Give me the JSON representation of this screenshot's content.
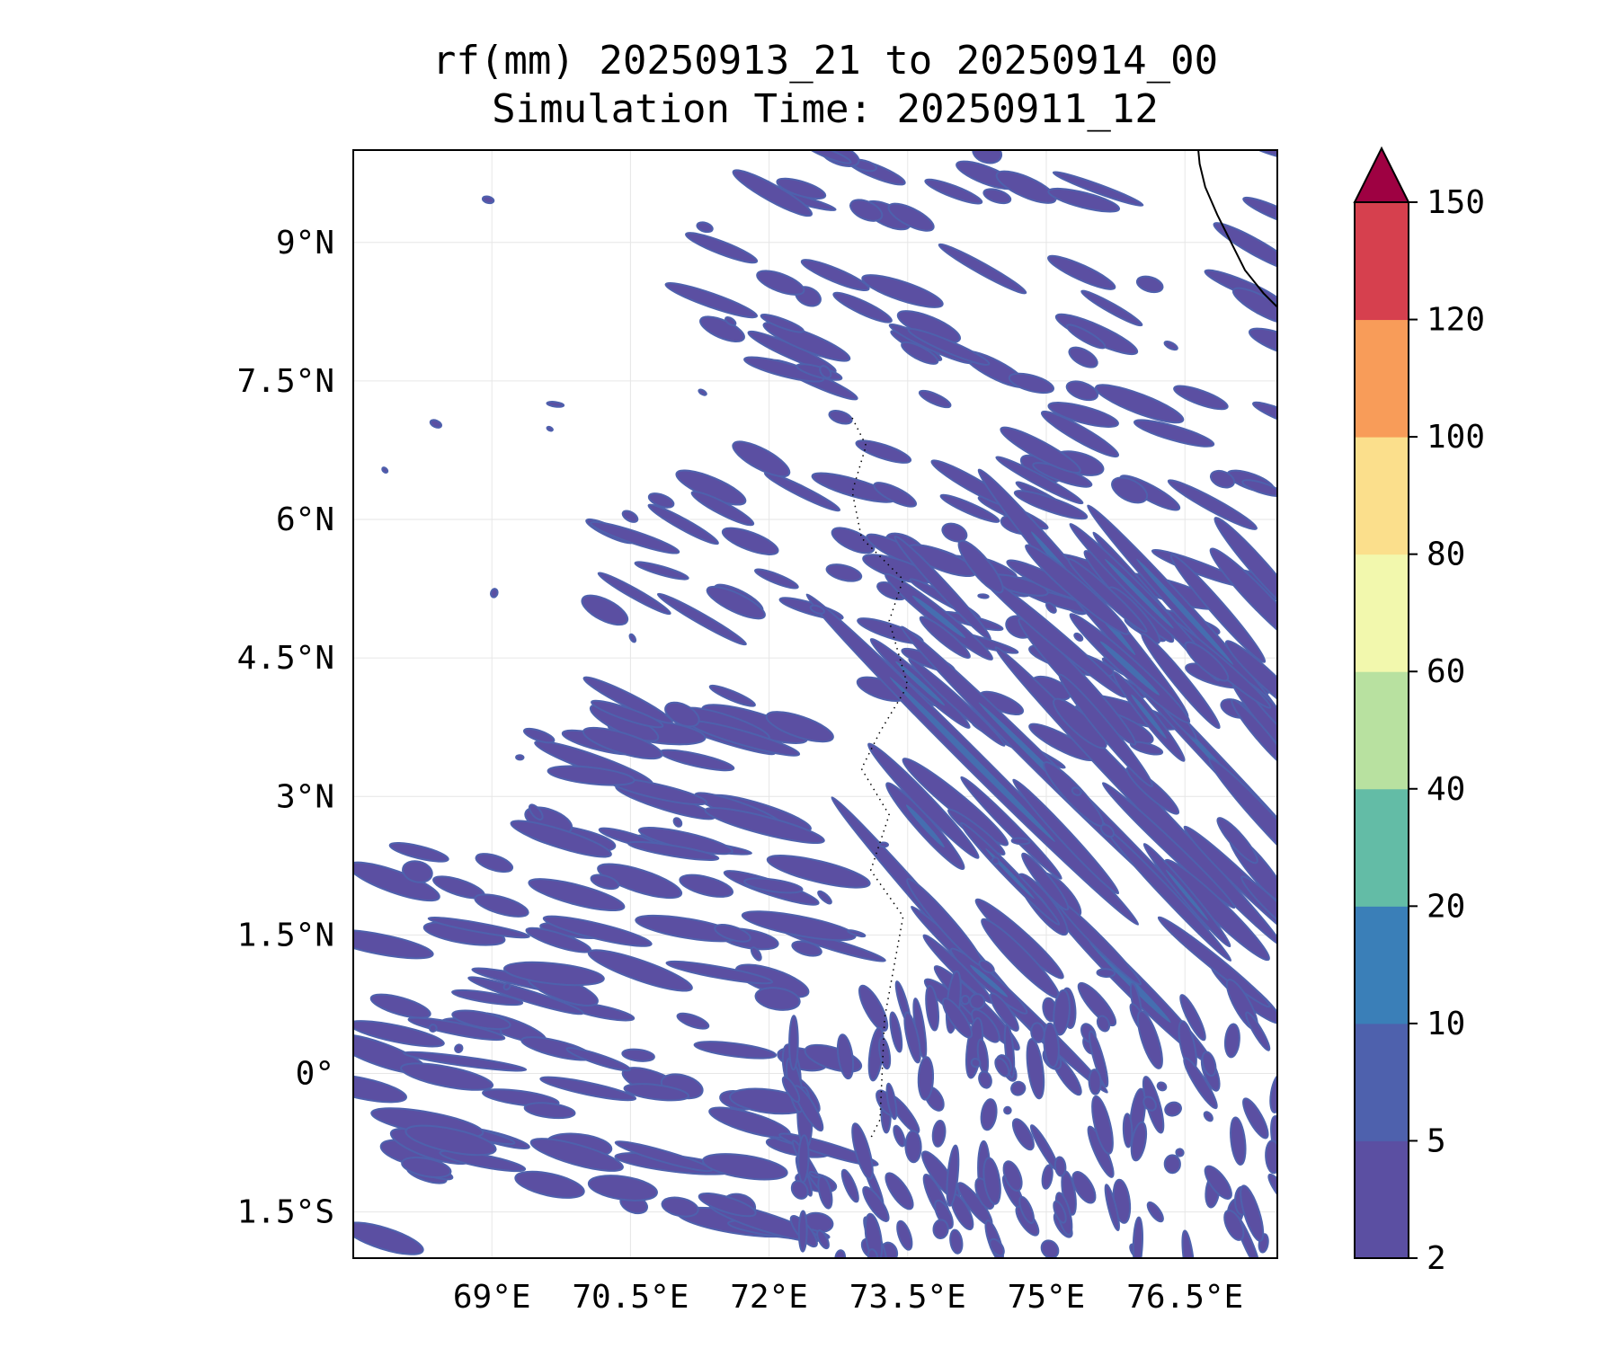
{
  "chart_data": {
    "type": "contourf-map",
    "title_line1": "rf(mm) 20250913_21 to 20250914_00",
    "title_line2": "Simulation Time: 20250911_12",
    "xlim": [
      67.5,
      77.5
    ],
    "ylim": [
      -2,
      10
    ],
    "x_ticks": [
      69,
      70.5,
      72,
      73.5,
      75,
      76.5
    ],
    "y_ticks": [
      9,
      7.5,
      6,
      4.5,
      3,
      1.5,
      0,
      -1.5
    ],
    "x_tick_labels": [
      "69°E",
      "70.5°E",
      "72°E",
      "73.5°E",
      "75°E",
      "76.5°E"
    ],
    "y_tick_labels": [
      "9°N",
      "7.5°N",
      "6°N",
      "4.5°N",
      "3°N",
      "1.5°N",
      "0°",
      "1.5°S"
    ],
    "grid": true,
    "colorbar": {
      "levels": [
        2,
        5,
        10,
        20,
        40,
        60,
        80,
        100,
        120,
        150
      ],
      "tick_labels": [
        "2",
        "5",
        "10",
        "20",
        "40",
        "60",
        "80",
        "100",
        "120",
        "150"
      ],
      "colors": [
        "#5b4fa2",
        "#4e61ad",
        "#3a7fb8",
        "#63bca6",
        "#b8e1a0",
        "#f2f8ad",
        "#fbdf8c",
        "#f89c59",
        "#d6404e"
      ],
      "extend_color": "#9e0142",
      "extend": "max"
    }
  }
}
